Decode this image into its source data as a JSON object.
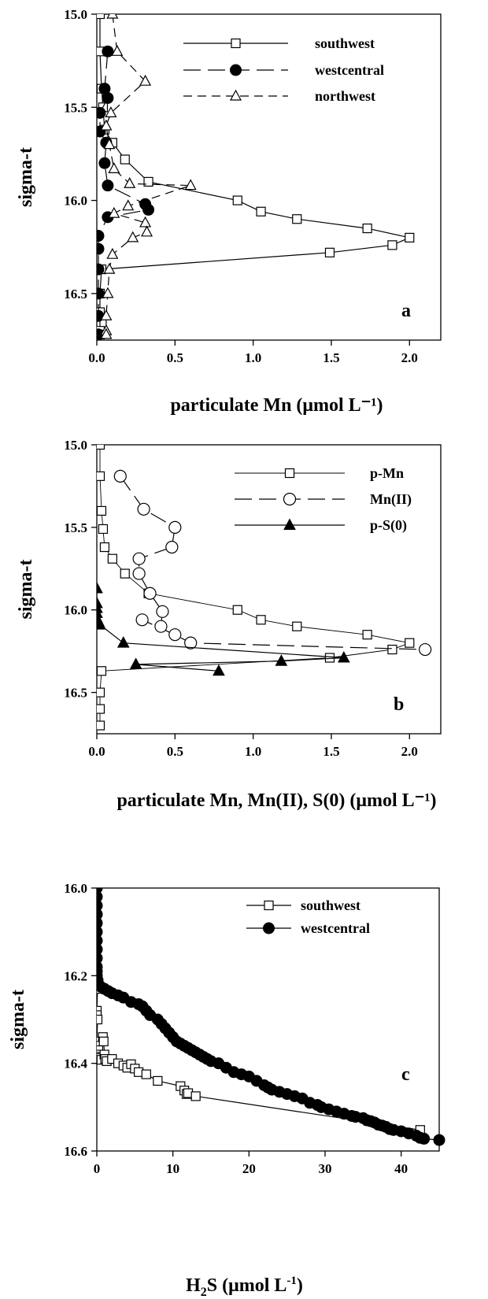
{
  "chart_data": [
    {
      "type": "line",
      "panel_letter": "a",
      "xlabel": "particulate Mn (μmol L⁻¹)",
      "ylabel": "sigma-t",
      "xlim": [
        0,
        2.2
      ],
      "ylim": [
        15.0,
        16.75
      ],
      "y_inverted": true,
      "xticks": [
        0,
        0.5,
        1.0,
        1.5,
        2.0
      ],
      "xtick_labels": [
        "0.0",
        "0.5",
        "1.0",
        "1.5",
        "2.0"
      ],
      "yticks": [
        15.0,
        15.5,
        16.0,
        16.5
      ],
      "ytick_labels": [
        "15.0",
        "15.5",
        "16.0",
        "16.5"
      ],
      "grid": false,
      "legend": "top-right",
      "series": [
        {
          "name": "southwest",
          "marker": "open-square",
          "line": "solid",
          "x": [
            0.02,
            0.02,
            0.03,
            0.04,
            0.05,
            0.1,
            0.18,
            0.33,
            0.9,
            1.05,
            1.28,
            1.73,
            2.0,
            1.89,
            1.49,
            0.03,
            0.02,
            0.02,
            0.02,
            0.02
          ],
          "y": [
            15.0,
            15.2,
            15.4,
            15.5,
            15.62,
            15.69,
            15.78,
            15.9,
            16.0,
            16.06,
            16.1,
            16.15,
            16.2,
            16.24,
            16.28,
            16.37,
            16.5,
            16.6,
            16.7,
            16.72
          ]
        },
        {
          "name": "westcentral",
          "marker": "filled-circle",
          "line": "long-dash",
          "x": [
            0.07,
            0.05,
            0.07,
            0.02,
            0.02,
            0.06,
            0.05,
            0.07,
            0.31,
            0.33,
            0.07,
            0.01,
            0.01,
            0.01,
            0.01,
            0.01,
            0.01,
            0.01
          ],
          "y": [
            15.2,
            15.4,
            15.45,
            15.53,
            15.63,
            15.69,
            15.8,
            15.92,
            16.02,
            16.05,
            16.09,
            16.19,
            16.26,
            16.37,
            16.5,
            16.62,
            16.72,
            16.72
          ]
        },
        {
          "name": "northwest",
          "marker": "open-triangle",
          "line": "short-dash",
          "x": [
            0.1,
            0.13,
            0.31,
            0.09,
            0.06,
            0.08,
            0.11,
            0.21,
            0.6,
            0.2,
            0.11,
            0.31,
            0.32,
            0.23,
            0.1,
            0.08,
            0.07,
            0.06,
            0.06,
            0.06
          ],
          "y": [
            15.0,
            15.2,
            15.36,
            15.53,
            15.6,
            15.7,
            15.83,
            15.91,
            15.92,
            16.03,
            16.07,
            16.12,
            16.17,
            16.2,
            16.29,
            16.37,
            16.5,
            16.62,
            16.7,
            16.72
          ]
        }
      ]
    },
    {
      "type": "line",
      "panel_letter": "b",
      "xlabel": "particulate Mn, Mn(II), S(0) (μmol L⁻¹)",
      "ylabel": "sigma-t",
      "xlim": [
        0,
        2.2
      ],
      "ylim": [
        15.0,
        16.75
      ],
      "y_inverted": true,
      "xticks": [
        0,
        0.5,
        1.0,
        1.5,
        2.0
      ],
      "xtick_labels": [
        "0.0",
        "0.5",
        "1.0",
        "1.5",
        "2.0"
      ],
      "yticks": [
        15.0,
        15.5,
        16.0,
        16.5
      ],
      "ytick_labels": [
        "15.0",
        "15.5",
        "16.0",
        "16.5"
      ],
      "grid": false,
      "legend": "top-right",
      "series": [
        {
          "name": "p-Mn",
          "marker": "open-square",
          "line": "solid-thin",
          "x": [
            0.02,
            0.02,
            0.03,
            0.04,
            0.05,
            0.1,
            0.18,
            0.33,
            0.9,
            1.05,
            1.28,
            1.73,
            2.0,
            1.89,
            1.49,
            0.03,
            0.02,
            0.02,
            0.02
          ],
          "y": [
            15.0,
            15.19,
            15.4,
            15.51,
            15.62,
            15.69,
            15.78,
            15.9,
            16.0,
            16.06,
            16.1,
            16.15,
            16.2,
            16.24,
            16.29,
            16.37,
            16.5,
            16.6,
            16.7
          ]
        },
        {
          "name": "Mn(II)",
          "marker": "open-circle",
          "line": "long-dash",
          "x": [
            0.15,
            0.3,
            0.5,
            0.48,
            0.27,
            0.27,
            0.34,
            0.42,
            0.41,
            0.29,
            0.5,
            0.6,
            2.1
          ],
          "y": [
            15.19,
            15.39,
            15.5,
            15.62,
            15.69,
            15.78,
            15.9,
            16.01,
            16.1,
            16.06,
            16.15,
            16.2,
            16.24
          ]
        },
        {
          "name": "p-S(0)",
          "marker": "filled-triangle",
          "line": "solid",
          "x": [
            0.0,
            0.0,
            0.0,
            0.0,
            0.0,
            0.01,
            0.02,
            0.17,
            1.58,
            1.18,
            0.25,
            0.78
          ],
          "y": [
            15.87,
            15.96,
            15.99,
            16.02,
            16.05,
            16.07,
            16.09,
            16.2,
            16.29,
            16.31,
            16.33,
            16.37
          ]
        }
      ]
    },
    {
      "type": "scatter",
      "panel_letter": "c",
      "xlabel_parts": [
        "H",
        "2",
        "S (μmol L",
        "-1",
        ")"
      ],
      "ylabel": "sigma-t",
      "xlim": [
        0,
        45
      ],
      "ylim": [
        16.0,
        16.6
      ],
      "y_inverted": true,
      "xticks": [
        0,
        10,
        20,
        30,
        40
      ],
      "xtick_labels": [
        "0",
        "10",
        "20",
        "30",
        "40"
      ],
      "yticks": [
        16.0,
        16.2,
        16.4,
        16.6
      ],
      "ytick_labels": [
        "16.0",
        "16.2",
        "16.4",
        "16.6"
      ],
      "grid": false,
      "legend": "top-right",
      "series": [
        {
          "name": "southwest",
          "marker": "open-square",
          "line": "solid",
          "x": [
            0.0,
            0.0,
            0.1,
            0.0,
            0.0,
            0.1,
            0.0,
            0.1,
            0.2,
            0.1,
            0.3,
            0.4,
            0.5,
            0.6,
            0.8,
            0.9,
            1.0,
            1.1,
            1.3,
            2.0,
            2.8,
            3.5,
            4.0,
            4.5,
            5.0,
            5.5,
            6.5,
            8.0,
            11.0,
            11.5,
            11.8,
            12.0,
            13.0,
            42.5
          ],
          "y": [
            16.2,
            16.22,
            16.23,
            16.28,
            16.29,
            16.3,
            16.35,
            16.36,
            16.37,
            16.38,
            16.385,
            16.39,
            16.388,
            16.392,
            16.34,
            16.35,
            16.38,
            16.39,
            16.395,
            16.39,
            16.4,
            16.405,
            16.41,
            16.402,
            16.412,
            16.42,
            16.425,
            16.44,
            16.452,
            16.462,
            16.47,
            16.468,
            16.475,
            16.552
          ]
        },
        {
          "name": "westcentral",
          "marker": "filled-circle",
          "line": "solid",
          "x": [
            0.0,
            0.0,
            0.0,
            0.0,
            0.0,
            0.0,
            0.0,
            0.0,
            0.0,
            0.0,
            0.0,
            0.0,
            0.1,
            0.1,
            0.2,
            0.3,
            0.5,
            1.0,
            1.5,
            2.0,
            2.8,
            3.5,
            4.5,
            5.5,
            6.0,
            6.5,
            7.0,
            8.0,
            8.5,
            9.0,
            9.5,
            10.0,
            10.5,
            11.0,
            11.5,
            12.0,
            12.5,
            13.0,
            13.5,
            14.0,
            14.5,
            15.0,
            16.0,
            17.0,
            18.0,
            19.0,
            20.0,
            21.0,
            22.0,
            22.5,
            23.0,
            24.0,
            25.0,
            26.0,
            27.0,
            28.0,
            29.0,
            29.5,
            30.5,
            31.5,
            32.5,
            33.5,
            34.0,
            35.0,
            35.5,
            36.0,
            36.5,
            37.0,
            37.5,
            38.0,
            38.5,
            39.0,
            40.0,
            41.0,
            42.0,
            42.5,
            43.0,
            45.0
          ],
          "y": [
            16.0,
            16.02,
            16.04,
            16.06,
            16.08,
            16.1,
            16.12,
            16.14,
            16.16,
            16.18,
            16.19,
            16.2,
            16.21,
            16.215,
            16.22,
            16.222,
            16.225,
            16.23,
            16.235,
            16.24,
            16.245,
            16.25,
            16.26,
            16.265,
            16.27,
            16.28,
            16.29,
            16.3,
            16.31,
            16.32,
            16.33,
            16.34,
            16.35,
            16.355,
            16.36,
            16.365,
            16.37,
            16.375,
            16.38,
            16.385,
            16.39,
            16.395,
            16.4,
            16.41,
            16.42,
            16.425,
            16.43,
            16.44,
            16.45,
            16.455,
            16.46,
            16.465,
            16.47,
            16.475,
            16.48,
            16.49,
            16.495,
            16.5,
            16.505,
            16.51,
            16.515,
            16.52,
            16.522,
            16.525,
            16.53,
            16.532,
            16.535,
            16.54,
            16.542,
            16.545,
            16.55,
            16.552,
            16.555,
            16.56,
            16.565,
            16.57,
            16.572,
            16.575
          ]
        }
      ]
    }
  ]
}
